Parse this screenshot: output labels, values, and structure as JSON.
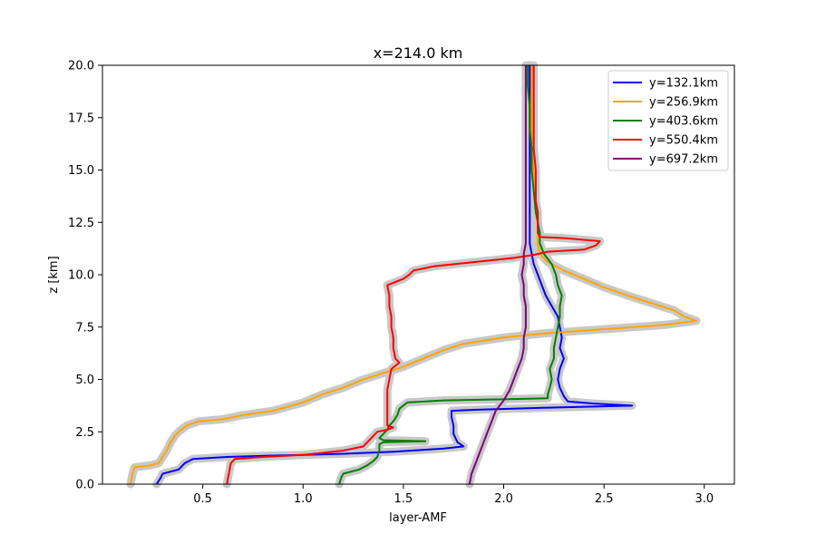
{
  "chart_data": {
    "type": "line",
    "title": "x=214.0 km",
    "xlabel": "layer-AMF",
    "ylabel": "z [km]",
    "xlim": [
      0.0,
      3.15
    ],
    "ylim": [
      0,
      20
    ],
    "xticks": [
      "0.5",
      "1.0",
      "1.5",
      "2.0",
      "2.5",
      "3.0"
    ],
    "xtick_values": [
      0.5,
      1.0,
      1.5,
      2.0,
      2.5,
      3.0
    ],
    "yticks": [
      "0.0",
      "2.5",
      "5.0",
      "7.5",
      "10.0",
      "12.5",
      "15.0",
      "17.5",
      "20.0"
    ],
    "ytick_values": [
      0.0,
      2.5,
      5.0,
      7.5,
      10.0,
      12.5,
      15.0,
      17.5,
      20.0
    ],
    "grid": false,
    "legend": "top-right",
    "uncertainty_band_color": "#c8c8c8",
    "series": [
      {
        "name": "y=132.1km",
        "color": "#0000ff",
        "points": [
          [
            0.27,
            0.0
          ],
          [
            0.29,
            0.3
          ],
          [
            0.3,
            0.5
          ],
          [
            0.38,
            0.7
          ],
          [
            0.41,
            1.0
          ],
          [
            0.45,
            1.2
          ],
          [
            0.62,
            1.3
          ],
          [
            0.8,
            1.35
          ],
          [
            1.0,
            1.4
          ],
          [
            1.2,
            1.45
          ],
          [
            1.45,
            1.55
          ],
          [
            1.7,
            1.7
          ],
          [
            1.8,
            1.8
          ],
          [
            1.77,
            2.0
          ],
          [
            1.75,
            2.4
          ],
          [
            1.75,
            2.8
          ],
          [
            1.74,
            3.2
          ],
          [
            1.74,
            3.5
          ],
          [
            1.85,
            3.55
          ],
          [
            2.2,
            3.65
          ],
          [
            2.64,
            3.75
          ],
          [
            2.45,
            3.85
          ],
          [
            2.32,
            3.95
          ],
          [
            2.3,
            4.2
          ],
          [
            2.28,
            4.6
          ],
          [
            2.27,
            5.0
          ],
          [
            2.28,
            5.5
          ],
          [
            2.3,
            6.0
          ],
          [
            2.28,
            6.5
          ],
          [
            2.29,
            7.0
          ],
          [
            2.28,
            7.5
          ],
          [
            2.27,
            8.0
          ],
          [
            2.24,
            8.5
          ],
          [
            2.21,
            9.0
          ],
          [
            2.19,
            9.5
          ],
          [
            2.17,
            10.0
          ],
          [
            2.15,
            10.5
          ],
          [
            2.14,
            11.0
          ],
          [
            2.13,
            11.5
          ],
          [
            2.13,
            12.0
          ],
          [
            2.13,
            13.0
          ],
          [
            2.13,
            14.0
          ],
          [
            2.13,
            15.0
          ],
          [
            2.13,
            16.0
          ],
          [
            2.13,
            17.0
          ],
          [
            2.13,
            18.0
          ],
          [
            2.13,
            19.0
          ],
          [
            2.13,
            20.0
          ]
        ]
      },
      {
        "name": "y=256.9km",
        "color": "#ffa500",
        "points": [
          [
            0.14,
            0.0
          ],
          [
            0.15,
            0.5
          ],
          [
            0.16,
            0.8
          ],
          [
            0.24,
            0.9
          ],
          [
            0.28,
            1.0
          ],
          [
            0.3,
            1.3
          ],
          [
            0.32,
            1.6
          ],
          [
            0.34,
            2.0
          ],
          [
            0.36,
            2.3
          ],
          [
            0.38,
            2.5
          ],
          [
            0.42,
            2.8
          ],
          [
            0.48,
            3.0
          ],
          [
            0.6,
            3.1
          ],
          [
            0.7,
            3.3
          ],
          [
            0.85,
            3.5
          ],
          [
            1.0,
            3.9
          ],
          [
            1.1,
            4.3
          ],
          [
            1.2,
            4.6
          ],
          [
            1.3,
            5.0
          ],
          [
            1.4,
            5.3
          ],
          [
            1.5,
            5.6
          ],
          [
            1.6,
            6.0
          ],
          [
            1.7,
            6.4
          ],
          [
            1.8,
            6.7
          ],
          [
            2.0,
            7.0
          ],
          [
            2.2,
            7.2
          ],
          [
            2.5,
            7.4
          ],
          [
            2.8,
            7.6
          ],
          [
            2.96,
            7.8
          ],
          [
            2.9,
            8.0
          ],
          [
            2.85,
            8.3
          ],
          [
            2.75,
            8.6
          ],
          [
            2.62,
            9.0
          ],
          [
            2.5,
            9.4
          ],
          [
            2.4,
            9.8
          ],
          [
            2.3,
            10.2
          ],
          [
            2.22,
            10.6
          ],
          [
            2.18,
            11.0
          ],
          [
            2.17,
            11.5
          ],
          [
            2.17,
            12.0
          ],
          [
            2.17,
            12.5
          ],
          [
            2.16,
            13.0
          ],
          [
            2.16,
            14.0
          ],
          [
            2.15,
            15.0
          ],
          [
            2.15,
            16.0
          ],
          [
            2.14,
            17.0
          ],
          [
            2.14,
            18.0
          ],
          [
            2.14,
            19.0
          ],
          [
            2.14,
            20.0
          ]
        ]
      },
      {
        "name": "y=403.6km",
        "color": "#008000",
        "points": [
          [
            1.18,
            0.0
          ],
          [
            1.19,
            0.3
          ],
          [
            1.2,
            0.5
          ],
          [
            1.28,
            0.7
          ],
          [
            1.32,
            0.9
          ],
          [
            1.35,
            1.1
          ],
          [
            1.37,
            1.3
          ],
          [
            1.38,
            1.6
          ],
          [
            1.38,
            1.9
          ],
          [
            1.4,
            2.0
          ],
          [
            1.61,
            2.05
          ],
          [
            1.4,
            2.1
          ],
          [
            1.38,
            2.2
          ],
          [
            1.4,
            2.4
          ],
          [
            1.42,
            2.6
          ],
          [
            1.43,
            2.8
          ],
          [
            1.45,
            3.0
          ],
          [
            1.47,
            3.3
          ],
          [
            1.48,
            3.6
          ],
          [
            1.52,
            3.9
          ],
          [
            1.7,
            4.0
          ],
          [
            2.0,
            4.05
          ],
          [
            2.22,
            4.1
          ],
          [
            2.22,
            4.3
          ],
          [
            2.23,
            4.6
          ],
          [
            2.24,
            5.0
          ],
          [
            2.23,
            5.5
          ],
          [
            2.25,
            6.0
          ],
          [
            2.25,
            6.5
          ],
          [
            2.26,
            7.0
          ],
          [
            2.27,
            7.5
          ],
          [
            2.28,
            8.0
          ],
          [
            2.28,
            8.5
          ],
          [
            2.29,
            9.0
          ],
          [
            2.27,
            9.5
          ],
          [
            2.26,
            10.0
          ],
          [
            2.24,
            10.5
          ],
          [
            2.2,
            11.0
          ],
          [
            2.18,
            11.5
          ],
          [
            2.18,
            12.0
          ],
          [
            2.17,
            12.5
          ],
          [
            2.16,
            13.0
          ],
          [
            2.15,
            14.0
          ],
          [
            2.14,
            15.0
          ],
          [
            2.14,
            16.0
          ],
          [
            2.13,
            17.0
          ],
          [
            2.13,
            18.0
          ],
          [
            2.12,
            19.0
          ],
          [
            2.12,
            20.0
          ]
        ]
      },
      {
        "name": "y=550.4km",
        "color": "#ff0000",
        "points": [
          [
            0.62,
            0.0
          ],
          [
            0.63,
            0.5
          ],
          [
            0.64,
            1.0
          ],
          [
            0.66,
            1.2
          ],
          [
            0.8,
            1.3
          ],
          [
            1.0,
            1.4
          ],
          [
            1.2,
            1.6
          ],
          [
            1.3,
            1.8
          ],
          [
            1.34,
            2.2
          ],
          [
            1.37,
            2.5
          ],
          [
            1.42,
            2.6
          ],
          [
            1.45,
            2.7
          ],
          [
            1.42,
            2.8
          ],
          [
            1.42,
            3.0
          ],
          [
            1.42,
            3.5
          ],
          [
            1.42,
            4.0
          ],
          [
            1.42,
            4.5
          ],
          [
            1.43,
            5.0
          ],
          [
            1.44,
            5.5
          ],
          [
            1.48,
            5.8
          ],
          [
            1.46,
            6.0
          ],
          [
            1.45,
            6.5
          ],
          [
            1.45,
            7.0
          ],
          [
            1.44,
            7.5
          ],
          [
            1.44,
            8.0
          ],
          [
            1.43,
            8.5
          ],
          [
            1.43,
            9.0
          ],
          [
            1.42,
            9.5
          ],
          [
            1.5,
            9.8
          ],
          [
            1.53,
            10.0
          ],
          [
            1.55,
            10.2
          ],
          [
            1.65,
            10.4
          ],
          [
            1.85,
            10.6
          ],
          [
            2.05,
            10.8
          ],
          [
            2.15,
            10.95
          ],
          [
            2.22,
            11.1
          ],
          [
            2.4,
            11.2
          ],
          [
            2.46,
            11.4
          ],
          [
            2.48,
            11.6
          ],
          [
            2.3,
            11.75
          ],
          [
            2.18,
            11.8
          ],
          [
            2.17,
            12.0
          ],
          [
            2.17,
            12.5
          ],
          [
            2.17,
            13.0
          ],
          [
            2.16,
            13.5
          ],
          [
            2.16,
            14.0
          ],
          [
            2.16,
            15.0
          ],
          [
            2.15,
            16.0
          ],
          [
            2.15,
            17.0
          ],
          [
            2.15,
            18.0
          ],
          [
            2.15,
            19.0
          ],
          [
            2.15,
            20.0
          ]
        ]
      },
      {
        "name": "y=697.2km",
        "color": "#800080",
        "points": [
          [
            1.83,
            0.0
          ],
          [
            1.84,
            0.5
          ],
          [
            1.86,
            1.0
          ],
          [
            1.88,
            1.5
          ],
          [
            1.9,
            2.0
          ],
          [
            1.92,
            2.5
          ],
          [
            1.94,
            3.0
          ],
          [
            1.96,
            3.5
          ],
          [
            2.0,
            4.0
          ],
          [
            2.03,
            4.5
          ],
          [
            2.05,
            5.0
          ],
          [
            2.07,
            5.5
          ],
          [
            2.09,
            6.0
          ],
          [
            2.1,
            6.5
          ],
          [
            2.1,
            7.0
          ],
          [
            2.11,
            7.5
          ],
          [
            2.11,
            8.0
          ],
          [
            2.11,
            8.5
          ],
          [
            2.1,
            9.0
          ],
          [
            2.1,
            9.5
          ],
          [
            2.09,
            10.0
          ],
          [
            2.1,
            10.5
          ],
          [
            2.1,
            11.0
          ],
          [
            2.11,
            11.5
          ],
          [
            2.11,
            12.0
          ],
          [
            2.11,
            12.5
          ],
          [
            2.11,
            13.0
          ],
          [
            2.11,
            14.0
          ],
          [
            2.11,
            15.0
          ],
          [
            2.11,
            16.0
          ],
          [
            2.11,
            17.0
          ],
          [
            2.11,
            18.0
          ],
          [
            2.11,
            19.0
          ],
          [
            2.11,
            20.0
          ]
        ]
      }
    ]
  }
}
